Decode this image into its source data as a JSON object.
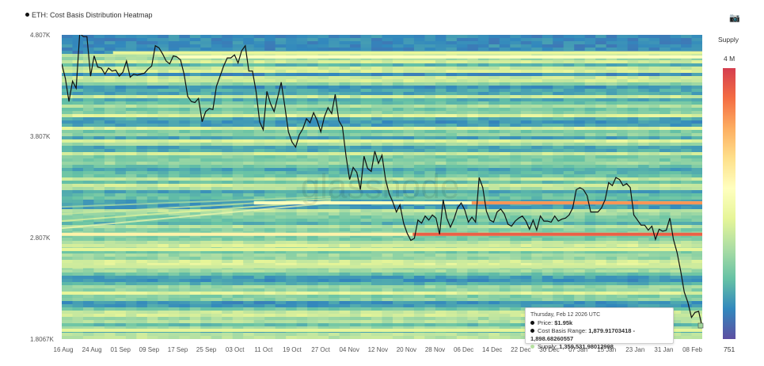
{
  "chart_data": {
    "type": "heatmap",
    "title": "ETH: Cost Basis Distribution Heatmap",
    "y_ticks": [
      {
        "label": "4.807K",
        "value": 4807
      },
      {
        "label": "3.807K",
        "value": 3807
      },
      {
        "label": "2.807K",
        "value": 2807
      },
      {
        "label": "1.8067K",
        "value": 1806.7
      }
    ],
    "ylim": [
      1806.7,
      4807
    ],
    "x_ticks": [
      "16 Aug",
      "24 Aug",
      "01 Sep",
      "09 Sep",
      "17 Sep",
      "25 Sep",
      "03 Oct",
      "11 Oct",
      "19 Oct",
      "27 Oct",
      "04 Nov",
      "12 Nov",
      "20 Nov",
      "28 Nov",
      "06 Dec",
      "14 Dec",
      "22 Dec",
      "30 Dec",
      "07 Jan",
      "15 Jan",
      "23 Jan",
      "31 Jan",
      "08 Feb"
    ],
    "colorbar": {
      "title": "Supply",
      "max_label": "4 M",
      "min_label": "751",
      "colors": [
        "#d53e4f",
        "#f46d43",
        "#fdae61",
        "#fee08b",
        "#ffffbf",
        "#e6f598",
        "#abdda4",
        "#66c2a5",
        "#3288bd",
        "#5e4fa2"
      ]
    },
    "price_line": {
      "name": "Price",
      "x": [
        0,
        1,
        2,
        3,
        4,
        5,
        6,
        7,
        8,
        9,
        10,
        11,
        12,
        13,
        14,
        15,
        16,
        17,
        18,
        19,
        20,
        21,
        22,
        23,
        24,
        25,
        26,
        27,
        28,
        29,
        30,
        31,
        32,
        33,
        34,
        35,
        36,
        37,
        38,
        39,
        40,
        41,
        42,
        43,
        44,
        45,
        46,
        47,
        48,
        49,
        50,
        51,
        52,
        53,
        54,
        55,
        56,
        57,
        58,
        59,
        60,
        61,
        62,
        63,
        64,
        65,
        66,
        67,
        68,
        69,
        70,
        71,
        72,
        73,
        74,
        75,
        76,
        77,
        78,
        79,
        80,
        81,
        82,
        83,
        84,
        85,
        86,
        87,
        88,
        89,
        90,
        91,
        92,
        93,
        94,
        95,
        96,
        97,
        98,
        99,
        100,
        101,
        102,
        103,
        104,
        105,
        106,
        107,
        108,
        109,
        110,
        111,
        112,
        113,
        114,
        115,
        116,
        117,
        118,
        119,
        120,
        121,
        122,
        123,
        124,
        125,
        126,
        127,
        128,
        129,
        130,
        131,
        132,
        133,
        134,
        135,
        136,
        137,
        138,
        139,
        140,
        141,
        142,
        143,
        144,
        145,
        146,
        147,
        148,
        149,
        150,
        151,
        152,
        153,
        154,
        155,
        156,
        157,
        158,
        159,
        160,
        161,
        162,
        163,
        164,
        165,
        166,
        167,
        168,
        169,
        170,
        171,
        172,
        173,
        174,
        175,
        176,
        177,
        178
      ],
      "y": [
        4520,
        4380,
        4150,
        4350,
        4280,
        4820,
        4790,
        4790,
        4400,
        4600,
        4490,
        4480,
        4420,
        4480,
        4450,
        4460,
        4400,
        4440,
        4550,
        4390,
        4420,
        4410,
        4420,
        4430,
        4470,
        4500,
        4700,
        4680,
        4620,
        4550,
        4520,
        4600,
        4590,
        4560,
        4420,
        4200,
        4150,
        4140,
        4180,
        3950,
        4050,
        4080,
        4070,
        4300,
        4400,
        4500,
        4580,
        4580,
        4610,
        4530,
        4650,
        4700,
        4450,
        4450,
        4250,
        3950,
        3870,
        4250,
        4130,
        4050,
        4190,
        4340,
        4100,
        3850,
        3750,
        3700,
        3820,
        3880,
        3980,
        3940,
        4040,
        3960,
        3850,
        4000,
        4090,
        4030,
        4220,
        3960,
        3900,
        3610,
        3380,
        3500,
        3450,
        3280,
        3610,
        3490,
        3460,
        3660,
        3540,
        3620,
        3380,
        3240,
        3160,
        3060,
        3130,
        2950,
        2850,
        2780,
        2800,
        2980,
        2950,
        3020,
        2980,
        3030,
        3000,
        2840,
        3180,
        3000,
        2910,
        2990,
        3100,
        3150,
        3080,
        2960,
        3010,
        2960,
        3400,
        3300,
        3070,
        2980,
        2960,
        3060,
        3090,
        3040,
        2940,
        2920,
        2970,
        3000,
        3020,
        2970,
        2890,
        2980,
        2880,
        3020,
        2970,
        2970,
        2960,
        3020,
        2970,
        2990,
        3000,
        3030,
        3100,
        3280,
        3300,
        3280,
        3220,
        3060,
        3060,
        3060,
        3100,
        3180,
        3350,
        3320,
        3400,
        3380,
        3320,
        3340,
        3300,
        3030,
        2980,
        2930,
        2930,
        2880,
        2920,
        2790,
        2890,
        2870,
        2880,
        3000,
        2790,
        2660,
        2480,
        2270,
        2170,
        2020,
        2070,
        2080,
        1920
      ],
      "xlim": [
        0,
        178
      ]
    },
    "hot_bands": [
      {
        "value": 2840,
        "start": 0.0,
        "level": 0.6
      },
      {
        "value": 2840,
        "start": 0.548,
        "level": 0.92
      },
      {
        "value": 3150,
        "start": 0.3,
        "level": 0.55
      },
      {
        "value": 3150,
        "start": 0.64,
        "level": 0.82
      },
      {
        "value": 4590,
        "start": 0.18,
        "level": 0.55
      },
      {
        "value": 4630,
        "start": 0.08,
        "level": 0.45
      },
      {
        "value": 2690,
        "start": 0.0,
        "level": 0.45
      },
      {
        "value": 2520,
        "start": 0.0,
        "level": 0.4
      },
      {
        "value": 1893,
        "start": 0.0,
        "level": 0.45
      }
    ],
    "annotations": [],
    "tooltip": {
      "date": "Thursday, Feb 12 2026 UTC",
      "price_label": "Price:",
      "price_value": "$1.95k",
      "range_label": "Cost Basis Range:",
      "range_value": "1,879.91703418 - 1,898.68260557",
      "supply_label": "Supply:",
      "supply_value": "1,359,531.98012998",
      "supply_color": "#b5e0a0"
    },
    "watermark": "glassnode"
  },
  "ui": {
    "camera_icon": "camera-icon"
  }
}
